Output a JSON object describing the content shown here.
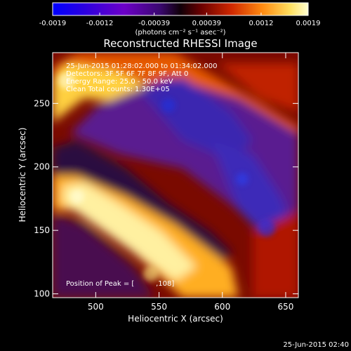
{
  "chart_data": {
    "type": "heatmap",
    "title": "Reconstructed RHESSI Image",
    "xlabel": "Heliocentric X (arcsec)",
    "ylabel": "Heliocentric Y (arcsec)",
    "xlim": [
      466,
      660
    ],
    "ylim": [
      97,
      290
    ],
    "x_ticks": [
      "500",
      "550",
      "600",
      "650"
    ],
    "y_ticks": [
      "250",
      "200",
      "150",
      "100"
    ],
    "x_tick_values": [
      500,
      550,
      600,
      650
    ],
    "y_tick_values": [
      250,
      200,
      150,
      100
    ],
    "colorbar": {
      "ticks": [
        "-0.0019",
        "-0.0012",
        "-0.00039",
        "0.00039",
        "0.0012",
        "0.0019"
      ],
      "range": [
        -0.0019,
        0.0019
      ],
      "units_label": "(photons cm⁻² s⁻¹ asec⁻²)"
    },
    "annotations": [
      "25-Jun-2015 01:28:02.000 to 01:34:02.000",
      "Detectors: 3F 5F 6F 7F 8F 9F, Att 0",
      "Energy Range: 25.0 - 50.0 keV",
      "Clean    Total counts: 1.30E+05"
    ],
    "peak_label": "Position of Peak = [",
    "peak_value": "      ,108]",
    "timestamp": "25-Jun-2015 02:40",
    "colors": {
      "background": "#000000",
      "text": "#ffffff"
    }
  }
}
